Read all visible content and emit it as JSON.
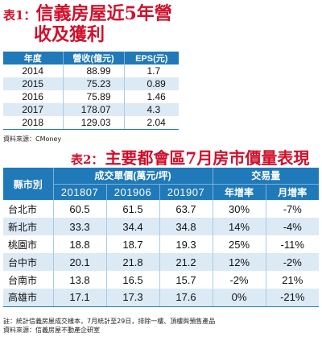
{
  "table1": {
    "tag": "表1：",
    "title_line1": "信義房屋近5年營",
    "title_line2": "收及獲利",
    "columns": [
      "年度",
      "營收(億元)",
      "EPS(元)"
    ],
    "rows": [
      [
        "2014",
        "88.99",
        "1.7"
      ],
      [
        "2015",
        "75.23",
        "0.89"
      ],
      [
        "2016",
        "75.89",
        "1.46"
      ],
      [
        "2017",
        "178.07",
        "4.3"
      ],
      [
        "2018",
        "129.03",
        "2.04"
      ]
    ],
    "source": "資料來源：CMoney"
  },
  "table2": {
    "tag": "表2：",
    "title": "主要都會區7月房市價量表現",
    "city_header": "縣市別",
    "price_header": "成交單價(萬元/坪)",
    "volume_header": "交易量",
    "sub_headers": [
      "201807",
      "201906",
      "201907",
      "年增率",
      "月增率"
    ],
    "rows": [
      [
        "台北市",
        "60.5",
        "61.5",
        "63.7",
        "30%",
        "-7%"
      ],
      [
        "新北市",
        "33.3",
        "34.4",
        "34.8",
        "14%",
        "-4%"
      ],
      [
        "桃園市",
        "18.8",
        "18.7",
        "19.3",
        "25%",
        "-11%"
      ],
      [
        "台中市",
        "20.1",
        "21.8",
        "21.2",
        "12%",
        "-2%"
      ],
      [
        "台南市",
        "13.8",
        "16.5",
        "15.7",
        "-2%",
        "21%"
      ],
      [
        "高雄市",
        "17.1",
        "17.3",
        "17.6",
        "0%",
        "-21%"
      ]
    ],
    "note": "註：統計信義房屋成交樣本，7月統計至29日，排除一樓、頂樓與預售產品",
    "source": "資料來源：信義房屋不動產企研室"
  }
}
